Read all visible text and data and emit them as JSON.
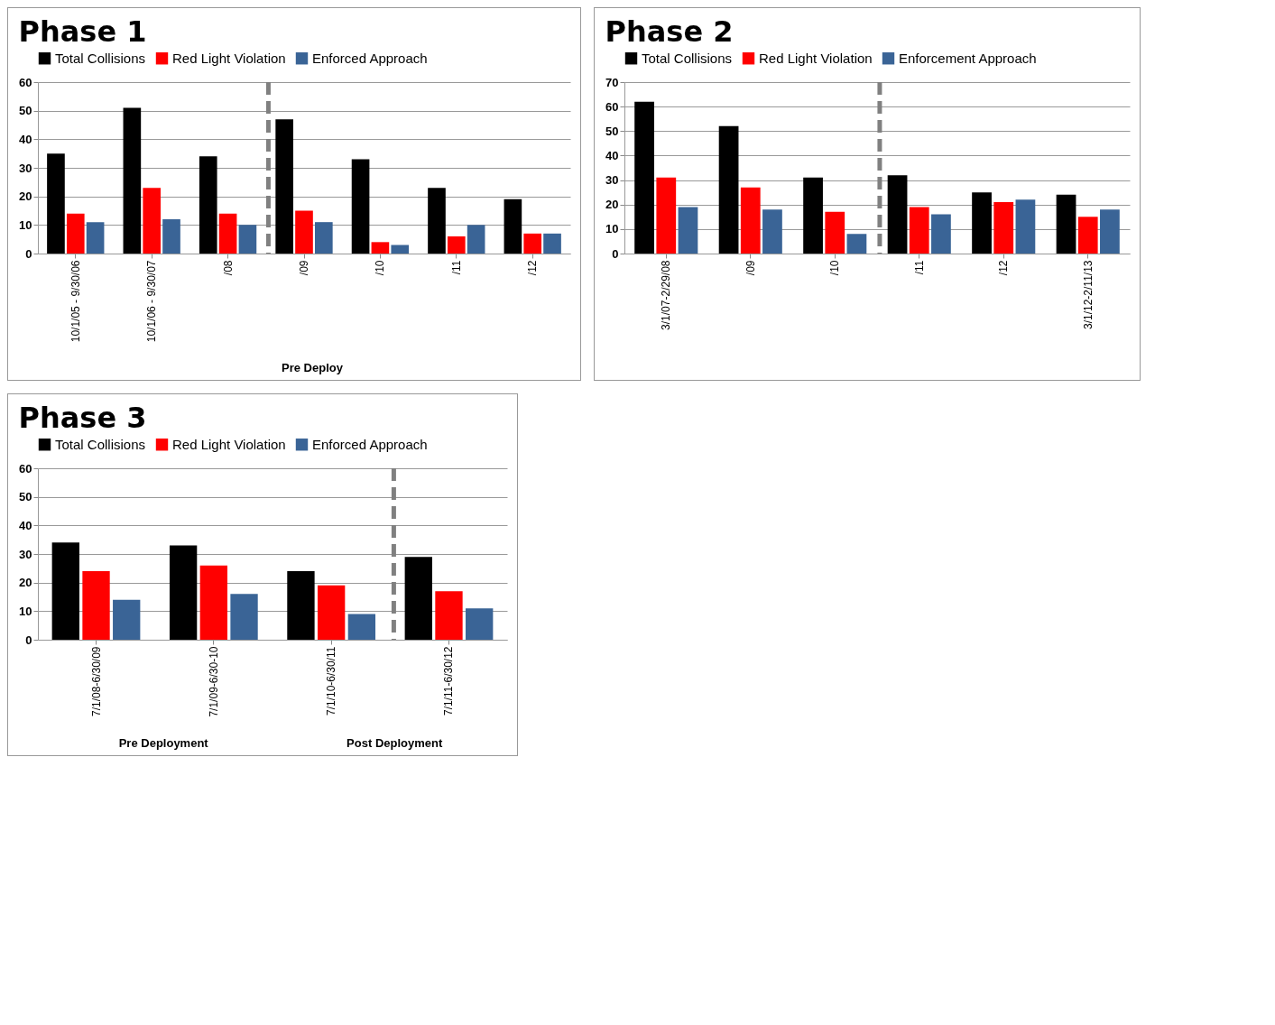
{
  "chart_data": [
    {
      "type": "bar",
      "title": "Phase 1",
      "categories": [
        "10/1/05 - 9/30/06",
        "10/1/06 - 9/30/07",
        "/08",
        "/09",
        "/10",
        "/11",
        "/12"
      ],
      "series": [
        {
          "name": "Total Collisions",
          "color": "#000000",
          "values": [
            35,
            51,
            34,
            47,
            33,
            23,
            19
          ]
        },
        {
          "name": "Red Light Violation",
          "color": "#ff0000",
          "values": [
            14,
            23,
            14,
            15,
            4,
            6,
            7
          ]
        },
        {
          "name": "Enforced Approach",
          "color": "#3a6496",
          "values": [
            11,
            12,
            10,
            11,
            3,
            10,
            7
          ]
        }
      ],
      "ylim": [
        0,
        60
      ],
      "yticks": [
        0,
        10,
        20,
        30,
        40,
        50,
        60
      ],
      "grid": "y",
      "legend": "top",
      "ref_lines": [
        {
          "axis": "x",
          "value": "/09",
          "color": "#808080",
          "line_style": "dashed"
        }
      ],
      "annotations": [
        "Pre Deploy"
      ]
    },
    {
      "type": "bar",
      "title": "Phase 2",
      "categories": [
        "3/1/07-2/29/08",
        "/09",
        "/10",
        "/11",
        "/12",
        "3/1/12-2/11/13"
      ],
      "series": [
        {
          "name": "Total Collisions",
          "color": "#000000",
          "values": [
            62,
            52,
            31,
            32,
            25,
            24
          ]
        },
        {
          "name": "Red Light Violation",
          "color": "#ff0000",
          "values": [
            31,
            27,
            17,
            19,
            21,
            15
          ]
        },
        {
          "name": "Enforcement Approach",
          "color": "#3a6496",
          "values": [
            19,
            18,
            8,
            16,
            22,
            18
          ]
        }
      ],
      "ylim": [
        0,
        70
      ],
      "yticks": [
        0,
        10,
        20,
        30,
        40,
        50,
        60,
        70
      ],
      "grid": "y",
      "legend": "top",
      "ref_lines": [
        {
          "axis": "x",
          "value": "/11",
          "color": "#808080",
          "line_style": "dashed"
        }
      ]
    },
    {
      "type": "bar",
      "title": "Phase 3",
      "categories": [
        "7/1/08-6/30/09",
        "7/1/09-6/30-10",
        "7/1/10-6/30/11",
        "7/1/11-6/30/12"
      ],
      "series": [
        {
          "name": "Total Collisions",
          "color": "#000000",
          "values": [
            34,
            33,
            24,
            29
          ]
        },
        {
          "name": "Red Light Violation",
          "color": "#ff0000",
          "values": [
            24,
            26,
            19,
            17
          ]
        },
        {
          "name": "Enforced Approach",
          "color": "#3a6496",
          "values": [
            14,
            16,
            9,
            11
          ]
        }
      ],
      "ylim": [
        0,
        60
      ],
      "yticks": [
        0,
        10,
        20,
        30,
        40,
        50,
        60
      ],
      "grid": "y",
      "legend": "top",
      "ref_lines": [
        {
          "axis": "x",
          "value": "7/1/11-6/30/12",
          "color": "#808080",
          "line_style": "dashed"
        }
      ],
      "annotations": [
        "Pre Deployment",
        "Post Deployment"
      ]
    }
  ]
}
